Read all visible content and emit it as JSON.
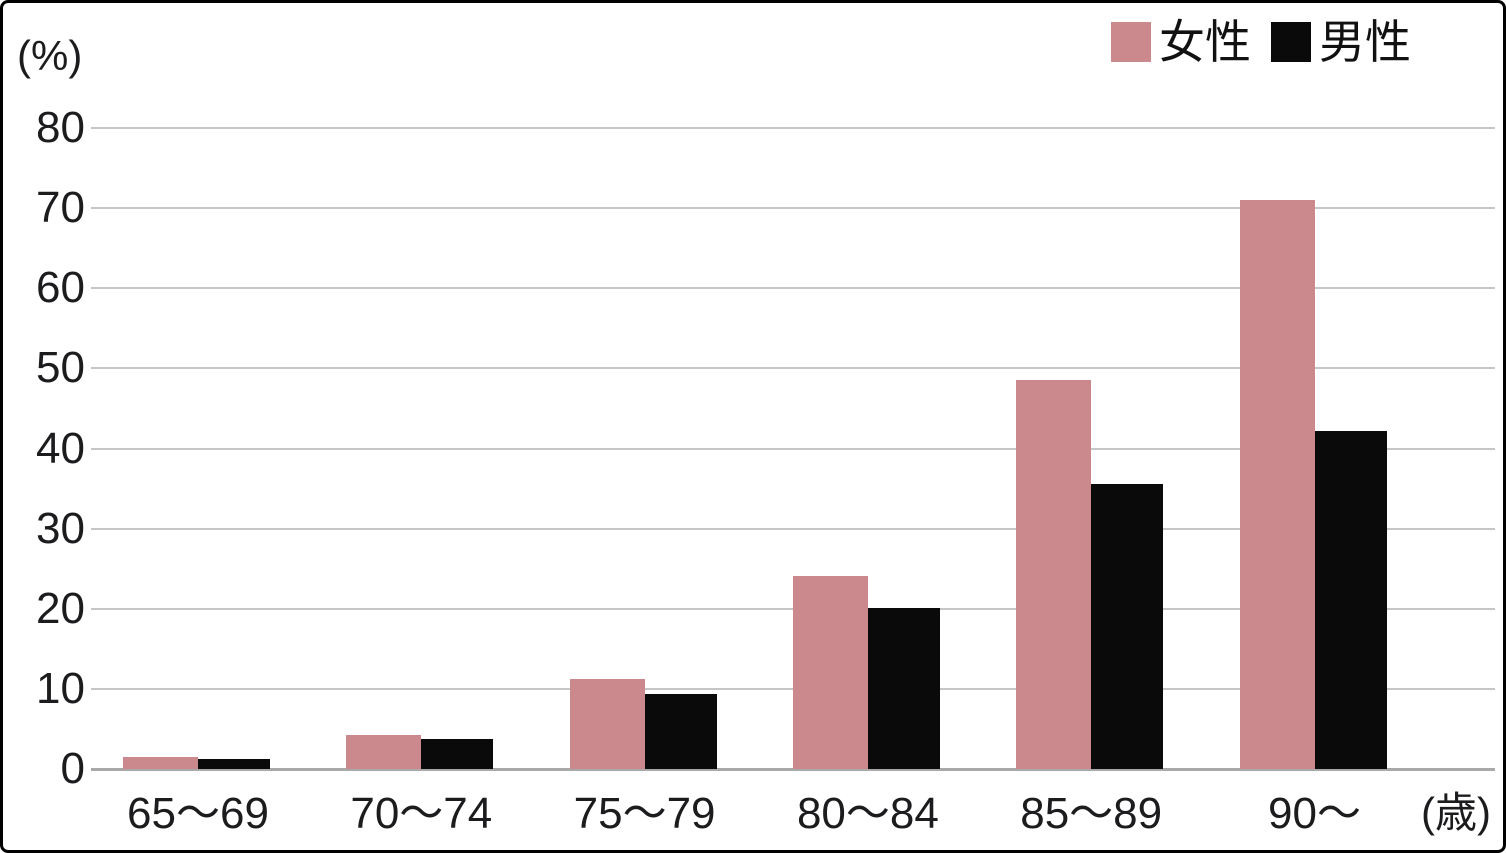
{
  "figure": {
    "y_axis_unit": "(%)",
    "x_axis_unit": "(歳)",
    "legend": [
      {
        "label": "女性",
        "color": "#cb898d"
      },
      {
        "label": "男性",
        "color": "#0a0a0a"
      }
    ]
  },
  "chart_data": {
    "type": "bar",
    "title": "",
    "categories": [
      "65〜69",
      "70〜74",
      "75〜79",
      "80〜84",
      "85〜89",
      "90〜"
    ],
    "series": [
      {
        "name": "女性",
        "color": "#cb898d",
        "values": [
          1.5,
          4.2,
          11.2,
          24.1,
          48.5,
          71.0
        ]
      },
      {
        "name": "男性",
        "color": "#0a0a0a",
        "values": [
          1.2,
          3.8,
          9.3,
          20.1,
          35.6,
          42.2
        ]
      }
    ],
    "xlabel": "(歳)",
    "ylabel": "(%)",
    "ylim": [
      0,
      80
    ],
    "ytick_step": 10,
    "grid": true,
    "legend_position": "top-right"
  }
}
